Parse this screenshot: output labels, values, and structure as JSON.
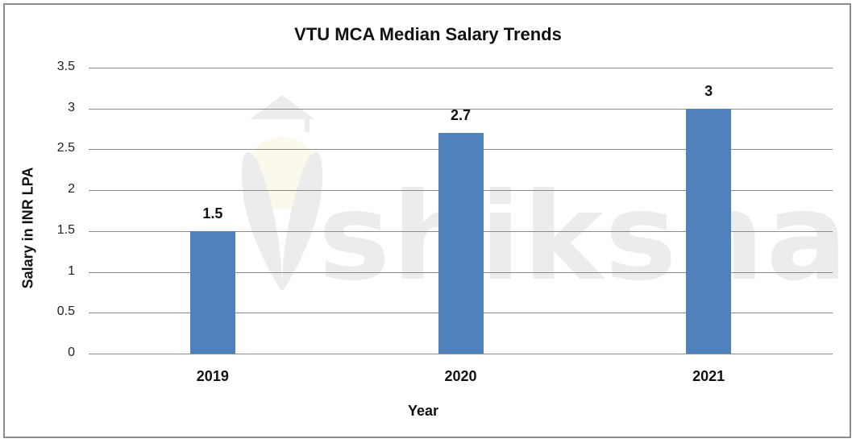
{
  "chart_data": {
    "type": "bar",
    "title": "VTU MCA Median Salary Trends",
    "xlabel": "Year",
    "ylabel": "Salary in INR LPA",
    "categories": [
      "2019",
      "2020",
      "2021"
    ],
    "values": [
      1.5,
      2.7,
      3
    ],
    "data_labels": [
      "1.5",
      "2.7",
      "3"
    ],
    "ylim": [
      0,
      3.5
    ],
    "yticks": [
      "0",
      "0.5",
      "1",
      "1.5",
      "2",
      "2.5",
      "3",
      "3.5"
    ],
    "grid": true,
    "legend": null,
    "bar_color": "#4f81bd",
    "watermark": "shiksha"
  }
}
